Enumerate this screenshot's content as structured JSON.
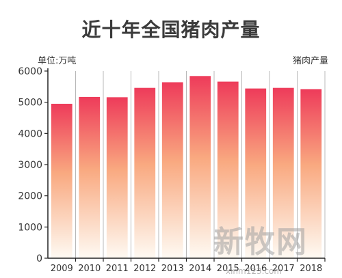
{
  "chart_data": {
    "type": "bar",
    "title": "近十年全国猪肉产量",
    "unit_label": "单位:万吨",
    "legend_label": "猪肉产量",
    "categories": [
      "2009",
      "2010",
      "2011",
      "2012",
      "2013",
      "2014",
      "2015",
      "2016",
      "2017",
      "2018"
    ],
    "values": [
      4950,
      5170,
      5160,
      5460,
      5640,
      5840,
      5660,
      5440,
      5460,
      5420
    ],
    "ylim": [
      0,
      6000
    ],
    "yticks": [
      0,
      1000,
      2000,
      3000,
      4000,
      5000,
      6000
    ],
    "grid": "vertical category separators",
    "bar_gradient": [
      "#ee3b5a",
      "#f9a980",
      "#fefaf3"
    ]
  },
  "watermark": {
    "brand": "新牧网",
    "url": "xinm123.com",
    "partial_year": "2018"
  }
}
